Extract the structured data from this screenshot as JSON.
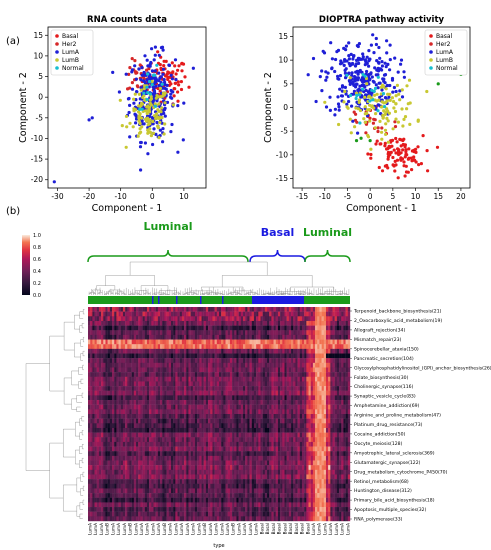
{
  "panel_a_label": "(a)",
  "panel_b_label": "(b)",
  "chart_data": [
    {
      "type": "scatter",
      "title": "RNA counts data",
      "xlabel": "Component - 1",
      "ylabel": "Component - 2",
      "xlim": [
        -33,
        17
      ],
      "ylim": [
        -22,
        17
      ],
      "xticks": [
        -30,
        -20,
        -10,
        0,
        10
      ],
      "yticks": [
        -20,
        -15,
        -10,
        -5,
        0,
        5,
        10,
        15
      ],
      "legend_position": "top-left",
      "series": [
        {
          "name": "Basal",
          "color": "#e41a1c",
          "center": [
            4,
            4
          ],
          "spread": [
            4.5,
            3.5
          ],
          "count": 90
        },
        {
          "name": "Her2",
          "color": "#d62728",
          "center": [
            -4,
            5
          ],
          "spread": [
            2.5,
            2.5
          ],
          "count": 30
        },
        {
          "name": "LumA",
          "color": "#1f1fd6",
          "center": [
            0,
            0
          ],
          "spread": [
            4.5,
            6.5
          ],
          "count": 260
        },
        {
          "name": "LumB",
          "color": "#c8c832",
          "center": [
            -1,
            -4
          ],
          "spread": [
            4,
            4
          ],
          "count": 110
        },
        {
          "name": "Normal",
          "color": "#17becf",
          "center": [
            0,
            2
          ],
          "spread": [
            3,
            3
          ],
          "count": 15
        }
      ],
      "outliers": [
        [
          -31,
          -20.5
        ],
        [
          -20,
          -5.5
        ],
        [
          -19,
          -5
        ],
        [
          13,
          7
        ]
      ]
    },
    {
      "type": "scatter",
      "title": "DIOPTRA pathway activity",
      "xlabel": "Component - 1",
      "ylabel": "Component - 2",
      "xlim": [
        -17,
        22
      ],
      "ylim": [
        -17,
        17
      ],
      "xticks": [
        -15,
        -10,
        -5,
        0,
        5,
        10,
        15,
        20
      ],
      "yticks": [
        -15,
        -10,
        -5,
        0,
        5,
        10,
        15
      ],
      "legend_position": "top-right",
      "series": [
        {
          "name": "Basal",
          "color": "#e41a1c",
          "center": [
            6,
            -10
          ],
          "spread": [
            3.5,
            2.5
          ],
          "count": 100
        },
        {
          "name": "Her2",
          "color": "#d62728",
          "center": [
            0,
            -3
          ],
          "spread": [
            4,
            3
          ],
          "count": 25
        },
        {
          "name": "LumA",
          "color": "#1f1fd6",
          "center": [
            -2,
            6
          ],
          "spread": [
            5,
            5
          ],
          "count": 280
        },
        {
          "name": "LumB",
          "color": "#c8c832",
          "center": [
            2,
            0
          ],
          "spread": [
            5,
            3.5
          ],
          "count": 110
        },
        {
          "name": "Normal",
          "color": "#17becf",
          "center": [
            -1,
            3
          ],
          "spread": [
            3,
            3
          ],
          "count": 18
        }
      ],
      "extra_green": [
        [
          -3,
          -7
        ],
        [
          -2,
          -6.5
        ],
        [
          0,
          -7
        ],
        [
          15,
          5
        ],
        [
          20,
          7
        ]
      ]
    },
    {
      "type": "heatmap",
      "group_labels": [
        "Luminal",
        "Basal",
        "Luminal"
      ],
      "group_colors": [
        "#1a9a1a",
        "#1a1ae0",
        "#1a9a1a"
      ],
      "colorbar_ticks": [
        "1.0",
        "0.8",
        "0.6",
        "0.4",
        "0.2",
        "0.0"
      ],
      "xlabel": "type",
      "column_tick_label": [
        "LumA",
        "LumA",
        "LumA",
        "LumB",
        "LumA",
        "LumA",
        "LumA",
        "LumB",
        "LumA",
        "LumA",
        "LumA",
        "LumA",
        "LumA",
        "LumB",
        "LumA",
        "LumA",
        "LumA",
        "LumA",
        "LumA",
        "LumA",
        "LumB",
        "LumA",
        "LumA",
        "LumA",
        "LumA",
        "LumB",
        "LumA",
        "LumA",
        "LumA",
        "LumA",
        "Basal",
        "Basal",
        "Basal",
        "Basal",
        "Basal",
        "Basal",
        "Basal",
        "Basal",
        "Basal",
        "LumA",
        "LumA",
        "LumA",
        "LumA",
        "LumA",
        "LumA",
        "LumA"
      ],
      "row_labels": [
        "Terpenoid_backbone_biosynthesis(21)",
        "2_Oxocarboxylic_acid_metabolism(19)",
        "Allograft_rejection(34)",
        "Mismatch_repair(23)",
        "Spinocerebellar_ataxia(150)",
        "Pancreatic_secretion(104)",
        "Glycosylphosphatidylinositol_(GPI)_anchor_biosynthesis(26)",
        "Folate_biosynthesis(30)",
        "Cholinergic_synapse(116)",
        "Synaptic_vesicle_cycle(83)",
        "Amphetamine_addiction(69)",
        "Arginine_and_proline_metabolism(47)",
        "Platinum_drug_resistance(73)",
        "Cocaine_addiction(50)",
        "Oocyte_meiosis(128)",
        "Amyotrophic_lateral_sclerosis(369)",
        "Glutamatergic_synapse(122)",
        "Drug_metabolism_cytochrome_P450(70)",
        "Retinol_metabolism(68)",
        "Huntington_disease(312)",
        "Primary_bile_acid_biosynthesis(18)",
        "Apoptosis_multiple_species(32)",
        "RNA_polymerase(33)"
      ]
    }
  ]
}
